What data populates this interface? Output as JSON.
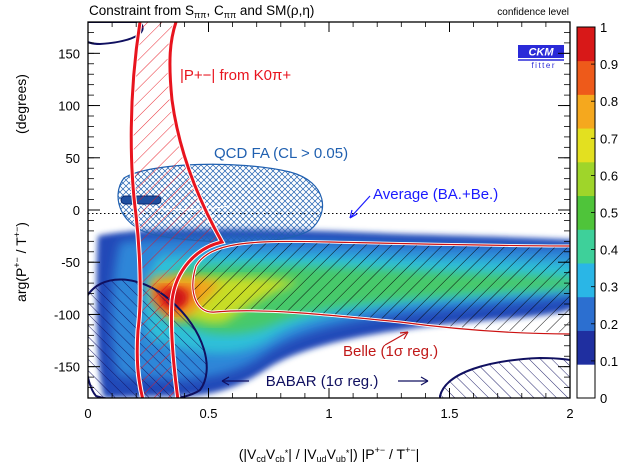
{
  "header": {
    "title": "Constraint from S",
    "title_sub1": "ππ",
    "title_mid": ", C",
    "title_sub2": "ππ",
    "title_tail": " and SM(ρ,η)",
    "confidence_label": "confidence level"
  },
  "logo": {
    "line1": "CKM",
    "line2": "fitter"
  },
  "colors": {
    "frame": "#000000",
    "red_constraint": "#e8141e",
    "qcd_blue": "#2060b0",
    "babar_navy": "#101060",
    "average_blue": "#1a1aff",
    "belle_label": "#c01818"
  },
  "chart_data": {
    "type": "heatmap",
    "title": "Constraint from Sππ, Cππ and SM(ρ,η)",
    "xlabel": "(|Vcd Vcb*| / |Vud Vub*|) |P+− / T+−|",
    "ylabel": "arg(P+− / T+−)   (degrees)",
    "xlim": [
      0,
      2
    ],
    "ylim": [
      -180,
      180
    ],
    "x_ticks": [
      "0",
      "0.5",
      "1",
      "1.5",
      "2"
    ],
    "y_ticks": [
      "-150",
      "-100",
      "-50",
      "0",
      "50",
      "100",
      "150"
    ],
    "colorbar": {
      "label": "confidence level",
      "range": [
        0,
        1
      ],
      "tick_labels": [
        "0",
        "0.1",
        "0.2",
        "0.3",
        "0.4",
        "0.5",
        "0.6",
        "0.7",
        "0.8",
        "0.9",
        "1"
      ],
      "colors": [
        "#ffffff",
        "#1f2fa0",
        "#2c6fd0",
        "#2ab6e6",
        "#3ed09a",
        "#4fc43a",
        "#9fd52a",
        "#e3e020",
        "#f5a81e",
        "#ee5a1a",
        "#d81818"
      ]
    },
    "annotations": {
      "red_band": "|P+−| from K0π+",
      "qcd": "QCD FA (CL > 0.05)",
      "average": "Average (BA.+Be.)",
      "belle": "Belle (1σ reg.)",
      "babar": "BABAR (1σ reg.)"
    },
    "reference_line": {
      "y": 0,
      "style": "dotted"
    }
  }
}
